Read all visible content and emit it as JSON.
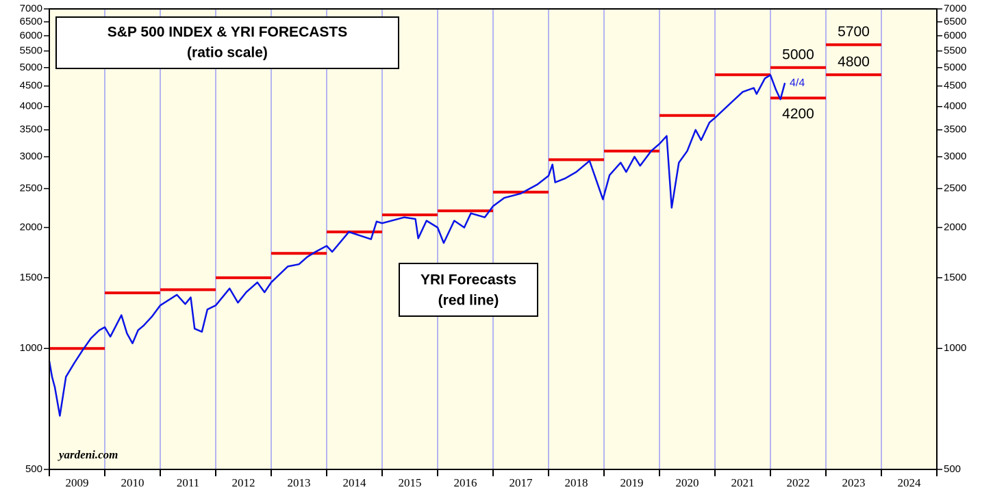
{
  "chart_data": {
    "type": "line",
    "title": "S&P 500 INDEX & YRI FORECASTS",
    "subtitle": "(ratio scale)",
    "annotations": [
      "YRI Forecasts",
      "(red line)",
      "yardeni.com",
      "4/4"
    ],
    "log_scale": true,
    "color": "#0a14e6",
    "forecast_color": "#ee0000",
    "grid_color": "#6a6aff",
    "categories": [
      "2009",
      "2010",
      "2011",
      "2012",
      "2013",
      "2014",
      "2015",
      "2016",
      "2017",
      "2018",
      "2019",
      "2020",
      "2021",
      "2022",
      "2023",
      "2024"
    ],
    "xlim": [
      2009,
      2025
    ],
    "xticks": [
      2009,
      2010,
      2011,
      2012,
      2013,
      2014,
      2015,
      2016,
      2017,
      2018,
      2019,
      2020,
      2021,
      2022,
      2023,
      2024,
      2025
    ],
    "ylim": [
      500,
      7000
    ],
    "yticks": [
      500,
      1000,
      1500,
      2000,
      2500,
      3000,
      3500,
      4000,
      4500,
      5000,
      5500,
      6000,
      6500,
      7000
    ],
    "x": [
      2009.0,
      2009.05,
      2009.1,
      2009.19,
      2009.3,
      2009.45,
      2009.6,
      2009.75,
      2009.9,
      2010.0,
      2010.1,
      2010.3,
      2010.4,
      2010.5,
      2010.6,
      2010.7,
      2010.85,
      2011.0,
      2011.3,
      2011.45,
      2011.55,
      2011.62,
      2011.75,
      2011.85,
      2012.0,
      2012.25,
      2012.4,
      2012.55,
      2012.75,
      2012.88,
      2013.0,
      2013.3,
      2013.5,
      2013.65,
      2013.8,
      2014.0,
      2014.1,
      2014.4,
      2014.8,
      2014.9,
      2015.0,
      2015.4,
      2015.6,
      2015.65,
      2015.8,
      2016.0,
      2016.11,
      2016.3,
      2016.48,
      2016.6,
      2016.85,
      2017.0,
      2017.2,
      2017.5,
      2017.8,
      2018.0,
      2018.07,
      2018.12,
      2018.3,
      2018.5,
      2018.74,
      2018.85,
      2018.98,
      2019.1,
      2019.3,
      2019.4,
      2019.55,
      2019.65,
      2019.85,
      2020.0,
      2020.13,
      2020.22,
      2020.35,
      2020.5,
      2020.65,
      2020.75,
      2020.9,
      2021.0,
      2021.3,
      2021.5,
      2021.7,
      2021.75,
      2021.9,
      2022.0,
      2022.1,
      2022.18,
      2022.26
    ],
    "values": [
      930,
      850,
      800,
      680,
      850,
      920,
      990,
      1060,
      1110,
      1130,
      1070,
      1210,
      1090,
      1030,
      1110,
      1140,
      1200,
      1280,
      1360,
      1290,
      1340,
      1120,
      1100,
      1250,
      1280,
      1410,
      1300,
      1380,
      1460,
      1380,
      1460,
      1600,
      1620,
      1690,
      1740,
      1800,
      1740,
      1950,
      1870,
      2070,
      2050,
      2120,
      2100,
      1880,
      2080,
      2000,
      1830,
      2080,
      2000,
      2170,
      2120,
      2260,
      2370,
      2430,
      2560,
      2690,
      2870,
      2590,
      2650,
      2750,
      2930,
      2650,
      2350,
      2700,
      2900,
      2750,
      3000,
      2850,
      3100,
      3230,
      3380,
      2240,
      2900,
      3100,
      3500,
      3300,
      3650,
      3750,
      4100,
      4350,
      4450,
      4300,
      4700,
      4790,
      4400,
      4170,
      4580
    ],
    "forecasts": [
      {
        "x": [
          2009,
          2010
        ],
        "value": 1000
      },
      {
        "x": [
          2010,
          2011
        ],
        "value": 1375
      },
      {
        "x": [
          2011,
          2012
        ],
        "value": 1400
      },
      {
        "x": [
          2012,
          2013
        ],
        "value": 1500
      },
      {
        "x": [
          2013,
          2014
        ],
        "value": 1725
      },
      {
        "x": [
          2014,
          2015
        ],
        "value": 1950
      },
      {
        "x": [
          2015,
          2016
        ],
        "value": 2150
      },
      {
        "x": [
          2016,
          2017
        ],
        "value": 2200
      },
      {
        "x": [
          2017,
          2018
        ],
        "value": 2450
      },
      {
        "x": [
          2018,
          2019
        ],
        "value": 2950
      },
      {
        "x": [
          2019,
          2020
        ],
        "value": 3100
      },
      {
        "x": [
          2020,
          2021
        ],
        "value": 3800
      },
      {
        "x": [
          2021,
          2022
        ],
        "value": 4800
      },
      {
        "x": [
          2022,
          2023
        ],
        "value": 5000
      },
      {
        "x": [
          2022,
          2023
        ],
        "value": 4200
      },
      {
        "x": [
          2023,
          2024
        ],
        "value": 5700
      },
      {
        "x": [
          2023,
          2024
        ],
        "value": 4800
      }
    ]
  }
}
